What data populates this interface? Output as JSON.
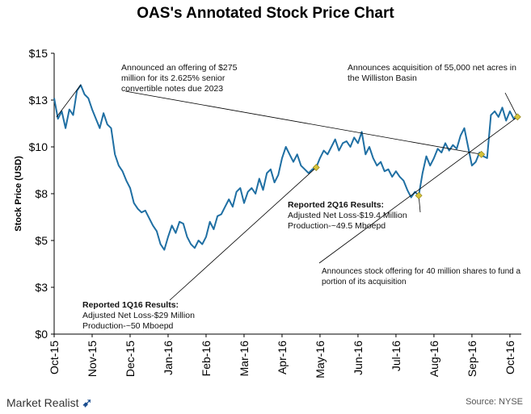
{
  "chart_data": {
    "type": "line",
    "title": "OAS's Annotated Stock Price Chart",
    "ylabel": "Stock Price (USD)",
    "xlabel": "",
    "ylim": [
      0,
      15
    ],
    "yticks": [
      {
        "value": 0,
        "label": "$0"
      },
      {
        "value": 2.5,
        "label": "$3"
      },
      {
        "value": 5,
        "label": "$5"
      },
      {
        "value": 7.5,
        "label": "$8"
      },
      {
        "value": 10,
        "label": "$10"
      },
      {
        "value": 12.5,
        "label": "$13"
      },
      {
        "value": 15,
        "label": "$15"
      }
    ],
    "x_tick_labels": [
      "Oct-15",
      "Nov-15",
      "Dec-15",
      "Jan-16",
      "Feb-16",
      "Mar-16",
      "Apr-16",
      "May-16",
      "Jun-16",
      "Jul-16",
      "Aug-16",
      "Sep-16",
      "Oct-16"
    ],
    "x_months_axis": {
      "start": "Oct-15",
      "end": "Oct-16"
    },
    "grid": false,
    "line_color": "#1f6fa3",
    "marker_color": "#d4c23a",
    "series": [
      {
        "values": [
          [
            0.0,
            12.6
          ],
          [
            0.1,
            11.5
          ],
          [
            0.2,
            11.9
          ],
          [
            0.3,
            11.0
          ],
          [
            0.4,
            12.0
          ],
          [
            0.5,
            11.7
          ],
          [
            0.6,
            13.0
          ],
          [
            0.7,
            13.3
          ],
          [
            0.8,
            12.8
          ],
          [
            0.9,
            12.6
          ],
          [
            1.0,
            12.0
          ],
          [
            1.1,
            11.5
          ],
          [
            1.2,
            11.0
          ],
          [
            1.3,
            11.8
          ],
          [
            1.4,
            11.2
          ],
          [
            1.5,
            11.0
          ],
          [
            1.6,
            9.6
          ],
          [
            1.7,
            9.0
          ],
          [
            1.8,
            8.7
          ],
          [
            1.9,
            8.2
          ],
          [
            2.0,
            7.8
          ],
          [
            2.1,
            7.0
          ],
          [
            2.2,
            6.7
          ],
          [
            2.3,
            6.5
          ],
          [
            2.4,
            6.6
          ],
          [
            2.5,
            6.2
          ],
          [
            2.6,
            5.8
          ],
          [
            2.7,
            5.5
          ],
          [
            2.8,
            4.8
          ],
          [
            2.9,
            4.5
          ],
          [
            3.0,
            5.2
          ],
          [
            3.1,
            5.8
          ],
          [
            3.2,
            5.4
          ],
          [
            3.3,
            6.0
          ],
          [
            3.4,
            5.9
          ],
          [
            3.5,
            5.2
          ],
          [
            3.6,
            4.8
          ],
          [
            3.7,
            4.6
          ],
          [
            3.8,
            5.0
          ],
          [
            3.9,
            4.8
          ],
          [
            4.0,
            5.2
          ],
          [
            4.1,
            6.0
          ],
          [
            4.2,
            5.6
          ],
          [
            4.3,
            6.3
          ],
          [
            4.4,
            6.4
          ],
          [
            4.5,
            6.8
          ],
          [
            4.6,
            7.2
          ],
          [
            4.7,
            6.8
          ],
          [
            4.8,
            7.6
          ],
          [
            4.9,
            7.8
          ],
          [
            5.0,
            7.0
          ],
          [
            5.1,
            7.6
          ],
          [
            5.2,
            7.8
          ],
          [
            5.3,
            7.5
          ],
          [
            5.4,
            8.3
          ],
          [
            5.5,
            7.7
          ],
          [
            5.6,
            8.6
          ],
          [
            5.7,
            8.8
          ],
          [
            5.8,
            8.1
          ],
          [
            5.9,
            8.5
          ],
          [
            6.0,
            9.4
          ],
          [
            6.1,
            10.0
          ],
          [
            6.2,
            9.6
          ],
          [
            6.3,
            9.2
          ],
          [
            6.4,
            9.6
          ],
          [
            6.5,
            9.0
          ],
          [
            6.6,
            8.8
          ],
          [
            6.7,
            8.6
          ],
          [
            6.8,
            8.8
          ],
          [
            6.9,
            8.9
          ],
          [
            7.0,
            9.4
          ],
          [
            7.1,
            9.8
          ],
          [
            7.2,
            9.6
          ],
          [
            7.3,
            10.0
          ],
          [
            7.4,
            10.4
          ],
          [
            7.5,
            9.8
          ],
          [
            7.6,
            10.2
          ],
          [
            7.7,
            10.3
          ],
          [
            7.8,
            10.0
          ],
          [
            7.9,
            10.5
          ],
          [
            8.0,
            10.2
          ],
          [
            8.1,
            10.8
          ],
          [
            8.2,
            9.6
          ],
          [
            8.3,
            10.0
          ],
          [
            8.4,
            9.4
          ],
          [
            8.5,
            9.0
          ],
          [
            8.6,
            9.2
          ],
          [
            8.7,
            8.7
          ],
          [
            8.8,
            8.8
          ],
          [
            8.9,
            8.4
          ],
          [
            9.0,
            8.7
          ],
          [
            9.1,
            8.4
          ],
          [
            9.2,
            8.2
          ],
          [
            9.3,
            7.7
          ],
          [
            9.4,
            7.3
          ],
          [
            9.5,
            7.6
          ],
          [
            9.6,
            7.4
          ],
          [
            9.7,
            8.6
          ],
          [
            9.8,
            9.5
          ],
          [
            9.9,
            9.0
          ],
          [
            10.0,
            9.4
          ],
          [
            10.1,
            9.9
          ],
          [
            10.2,
            9.7
          ],
          [
            10.3,
            10.2
          ],
          [
            10.4,
            9.8
          ],
          [
            10.5,
            10.1
          ],
          [
            10.6,
            9.9
          ],
          [
            10.7,
            10.6
          ],
          [
            10.8,
            11.0
          ],
          [
            10.9,
            10.0
          ],
          [
            11.0,
            9.0
          ],
          [
            11.1,
            9.2
          ],
          [
            11.2,
            9.7
          ],
          [
            11.3,
            9.5
          ],
          [
            11.4,
            9.4
          ],
          [
            11.5,
            11.7
          ],
          [
            11.6,
            11.9
          ],
          [
            11.7,
            11.6
          ],
          [
            11.8,
            12.1
          ],
          [
            11.9,
            11.4
          ],
          [
            12.0,
            11.9
          ],
          [
            12.1,
            11.5
          ],
          [
            12.2,
            11.6
          ]
        ]
      }
    ],
    "annotations": [
      {
        "id": "a1",
        "lines": [
          "Announced an offering of $275",
          "million for its 2.625% senior",
          "convertible notes due 2023"
        ]
      },
      {
        "id": "a2",
        "lines": [
          "Announces acquisition of 55,000 net acres in",
          "the Williston Basin"
        ]
      },
      {
        "id": "a3",
        "bold": "Reported 2Q16 Results:",
        "lines": [
          "Adjusted Net Loss-$19.4 Million",
          "Production-~49.5 Mboepd"
        ]
      },
      {
        "id": "a4",
        "lines": [
          "Announces stock offering for 40 million shares to fund a",
          "portion of its acquisition"
        ]
      },
      {
        "id": "a5",
        "bold": "Reported 1Q16 Results:",
        "lines": [
          "Adjusted Net Loss-$29 Million",
          "Production-~50 Mboepd"
        ]
      }
    ],
    "markers": [
      {
        "x": 6.9,
        "y": 8.9
      },
      {
        "x": 9.6,
        "y": 7.4
      },
      {
        "x": 11.25,
        "y": 9.6
      },
      {
        "x": 12.2,
        "y": 11.6
      }
    ]
  },
  "footer": {
    "brand": "Market Realist",
    "source": "Source: NYSE"
  }
}
